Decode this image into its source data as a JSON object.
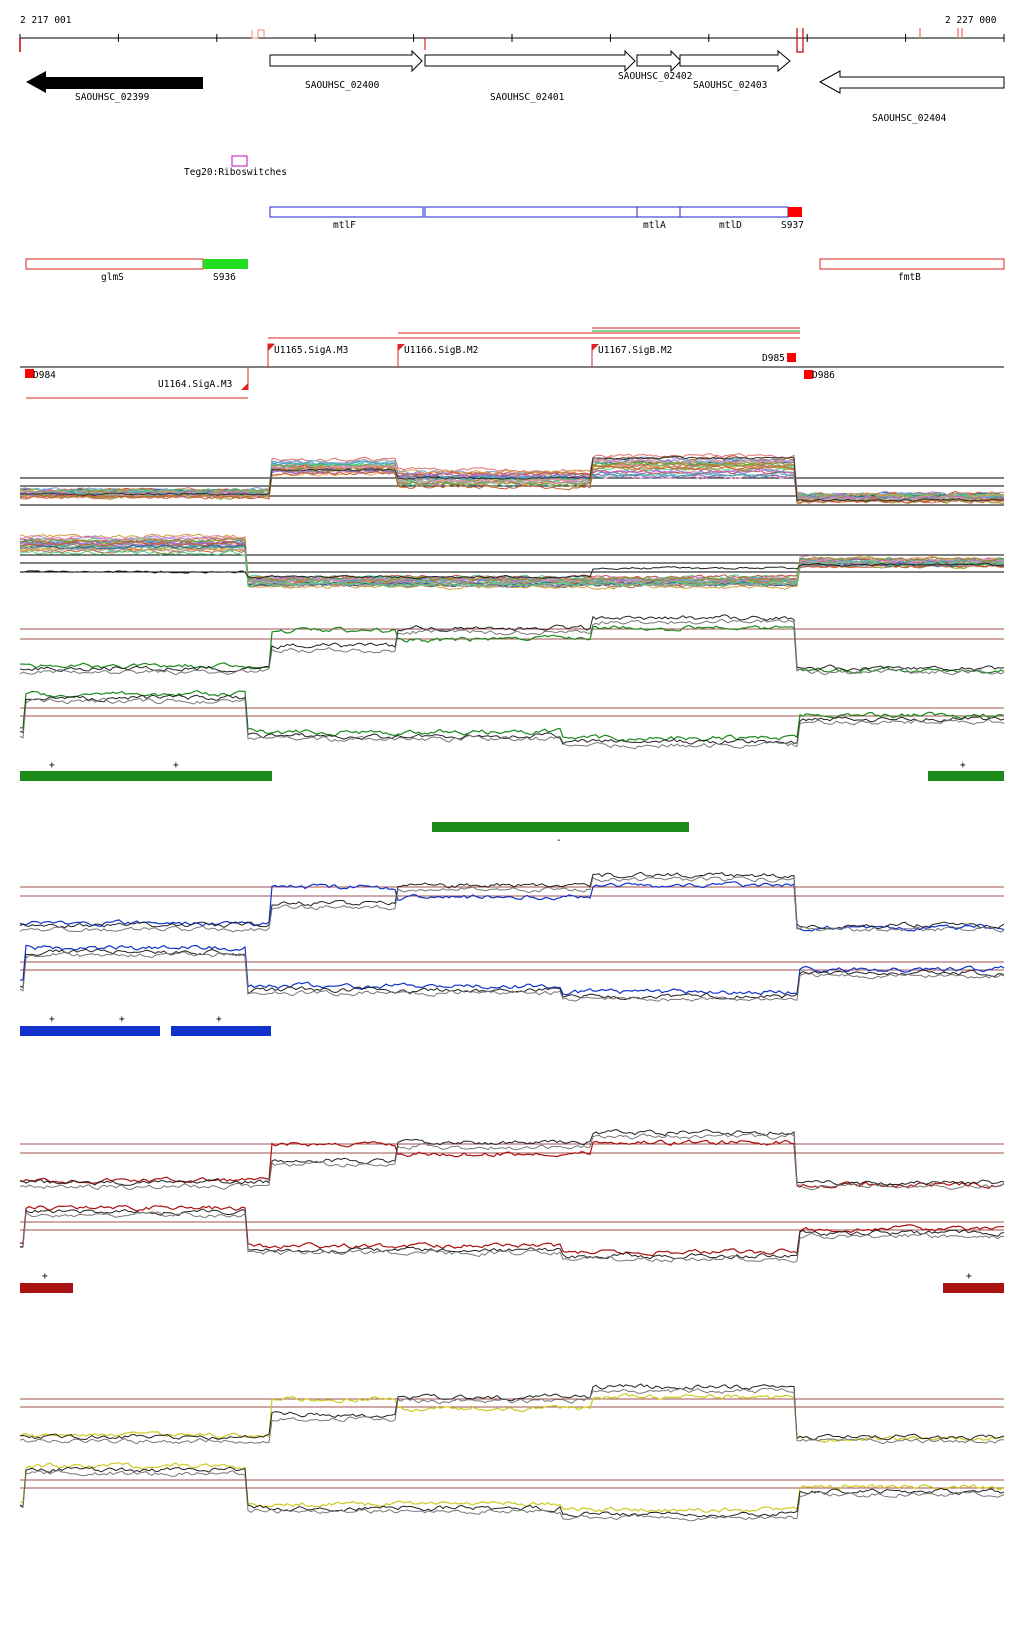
{
  "ruler": {
    "start_label": "2 217 001",
    "end_label": "2 227 000"
  },
  "genes": [
    {
      "label": "SAOUHSC_02399",
      "strand": "-",
      "style": "filled"
    },
    {
      "label": "SAOUHSC_02400",
      "strand": "+",
      "style": "outline"
    },
    {
      "label": "SAOUHSC_02401",
      "strand": "+",
      "style": "outline"
    },
    {
      "label": "SAOUHSC_02402",
      "strand": "+",
      "style": "outline"
    },
    {
      "label": "SAOUHSC_02403",
      "strand": "+",
      "style": "outline"
    },
    {
      "label": "SAOUHSC_02404",
      "strand": "-",
      "style": "outline"
    }
  ],
  "rfam": {
    "label": "Teg20:Riboswitches",
    "color": "#cc33cc"
  },
  "operon_blue": [
    {
      "label": "mtlF"
    },
    {
      "label": ""
    },
    {
      "label": "mtlA"
    },
    {
      "label": "mtlD"
    }
  ],
  "operon_blue_tag": {
    "label": "S937",
    "color": "#ff0000"
  },
  "operon_red": [
    {
      "label": "glmS"
    },
    {
      "label": "fmtB"
    }
  ],
  "operon_red_tag": {
    "label": "S936",
    "color": "#22dd22"
  },
  "promoters": [
    {
      "label": "U1164.SigA.M3"
    },
    {
      "label": "U1165.SigA.M3"
    },
    {
      "label": "U1166.SigB.M2"
    },
    {
      "label": "U1167.SigB.M2"
    }
  ],
  "transcript_marks": [
    {
      "label": "D984"
    },
    {
      "label": "D985"
    },
    {
      "label": "D986"
    }
  ],
  "tracks": {
    "green": {
      "color": "#1a8a1a",
      "segments_top": [
        "+",
        "+",
        "+"
      ],
      "segments_bottom": [
        "-"
      ]
    },
    "blue": {
      "color": "#1133cc",
      "segments": [
        "+",
        "+",
        "+"
      ]
    },
    "red": {
      "color": "#aa1111",
      "segments": [
        "+",
        "+"
      ]
    },
    "yellow": {
      "color": "#cccc22"
    }
  }
}
